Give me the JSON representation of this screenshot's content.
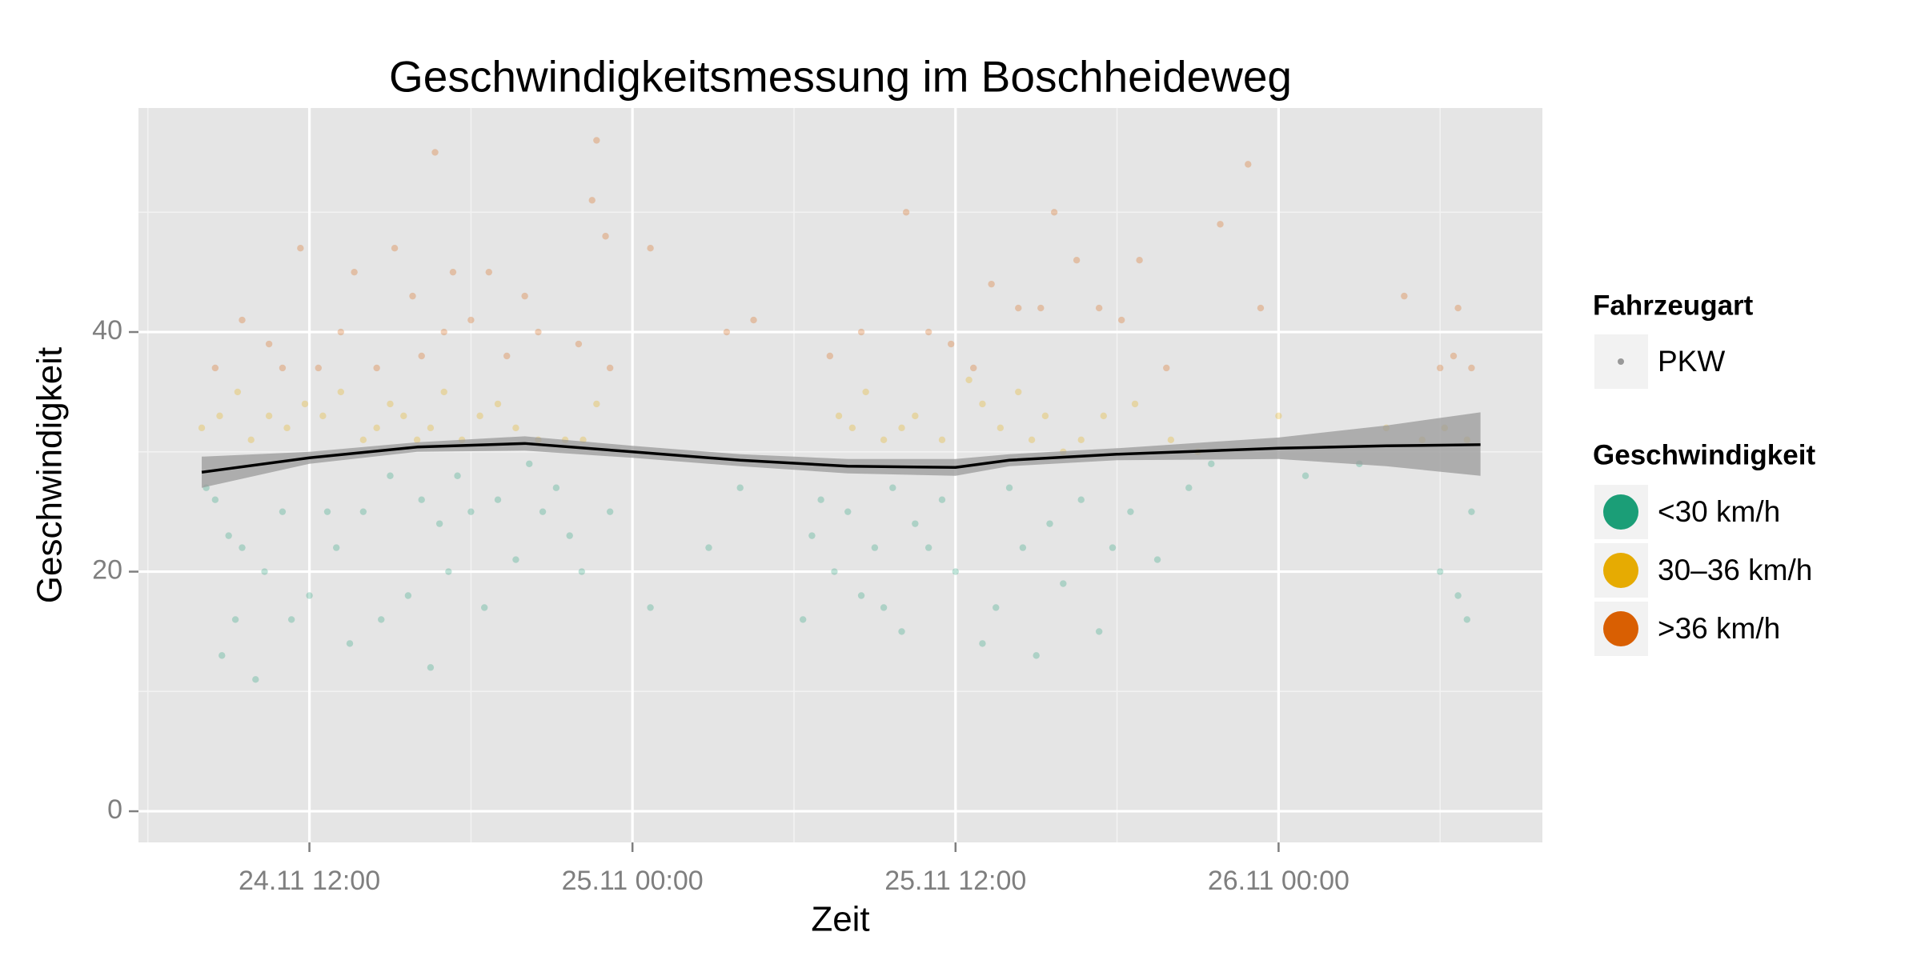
{
  "chart_data": {
    "type": "scatter",
    "title": "Geschwindigkeitsmessung im Boschheideweg",
    "xlabel": "Zeit",
    "ylabel": "Geschwindigkeit",
    "xlim": [
      "24.11 05:39",
      "26.11 09:48"
    ],
    "xticks": [
      "24.11 12:00",
      "25.11 00:00",
      "25.11 12:00",
      "26.11 00:00"
    ],
    "xminor": [
      "24.11 06:00",
      "24.11 18:00",
      "25.11 06:00",
      "25.11 18:00",
      "26.11 06:00"
    ],
    "ylim": [
      -2.6,
      58.7
    ],
    "yticks": [
      0,
      20,
      40
    ],
    "yminor": [
      10,
      30,
      50
    ],
    "grid": true,
    "legend": {
      "shape_title": "Fahrzeugart",
      "shape_entries": [
        "PKW"
      ],
      "color_title": "Geschwindigkeit",
      "position": "right"
    },
    "series": [
      {
        "name": "<30 km/h",
        "color": "#1b9e77",
        "x": [
          "24.11 08:10",
          "24.11 08:30",
          "24.11 08:45",
          "24.11 09:00",
          "24.11 09:15",
          "24.11 09:30",
          "24.11 10:00",
          "24.11 10:20",
          "24.11 11:00",
          "24.11 11:20",
          "24.11 12:00",
          "24.11 12:40",
          "24.11 13:00",
          "24.11 13:30",
          "24.11 14:00",
          "24.11 14:40",
          "24.11 15:00",
          "24.11 15:40",
          "24.11 16:10",
          "24.11 16:30",
          "24.11 16:50",
          "24.11 17:10",
          "24.11 17:30",
          "24.11 18:00",
          "24.11 18:30",
          "24.11 19:00",
          "24.11 19:40",
          "24.11 20:10",
          "24.11 20:40",
          "24.11 21:10",
          "24.11 21:40",
          "24.11 22:07",
          "24.11 23:10",
          "25.11 00:40",
          "25.11 02:50",
          "25.11 04:00",
          "25.11 06:20",
          "25.11 06:40",
          "25.11 07:00",
          "25.11 07:30",
          "25.11 08:00",
          "25.11 08:30",
          "25.11 09:00",
          "25.11 09:20",
          "25.11 09:40",
          "25.11 10:00",
          "25.11 10:30",
          "25.11 11:00",
          "25.11 11:30",
          "25.11 12:00",
          "25.11 13:00",
          "25.11 13:30",
          "25.11 14:00",
          "25.11 14:30",
          "25.11 15:00",
          "25.11 15:30",
          "25.11 16:00",
          "25.11 16:40",
          "25.11 17:20",
          "25.11 17:50",
          "25.11 18:30",
          "25.11 19:30",
          "25.11 20:40",
          "25.11 21:30",
          "26.11 01:00",
          "26.11 03:00",
          "26.11 06:00",
          "26.11 06:40",
          "26.11 07:00",
          "26.11 07:10"
        ],
        "values": [
          27,
          26,
          13,
          23,
          16,
          22,
          11,
          20,
          25,
          16,
          18,
          25,
          22,
          14,
          25,
          16,
          28,
          18,
          26,
          12,
          24,
          20,
          28,
          25,
          17,
          26,
          21,
          29,
          25,
          27,
          23,
          20,
          25,
          17,
          22,
          27,
          16,
          23,
          26,
          20,
          25,
          18,
          22,
          17,
          27,
          15,
          24,
          22,
          26,
          20,
          14,
          17,
          27,
          22,
          13,
          24,
          19,
          26,
          15,
          22,
          25,
          21,
          27,
          29,
          28,
          29,
          20,
          18,
          16,
          25
        ]
      },
      {
        "name": "30–36 km/h",
        "color": "#e6ab02",
        "x": [
          "24.11 08:00",
          "24.11 08:40",
          "24.11 09:20",
          "24.11 09:50",
          "24.11 10:30",
          "24.11 11:10",
          "24.11 11:50",
          "24.11 12:30",
          "24.11 13:10",
          "24.11 14:00",
          "24.11 14:30",
          "24.11 15:00",
          "24.11 15:30",
          "24.11 16:00",
          "24.11 16:30",
          "24.11 17:00",
          "24.11 17:40",
          "24.11 18:20",
          "24.11 19:00",
          "24.11 19:40",
          "24.11 20:30",
          "24.11 21:30",
          "24.11 22:10",
          "24.11 22:40",
          "25.11 07:40",
          "25.11 08:10",
          "25.11 08:40",
          "25.11 09:20",
          "25.11 10:00",
          "25.11 10:30",
          "25.11 11:30",
          "25.11 12:30",
          "25.11 13:00",
          "25.11 13:40",
          "25.11 14:20",
          "25.11 14:50",
          "25.11 15:20",
          "25.11 16:00",
          "25.11 16:40",
          "25.11 17:30",
          "25.11 18:40",
          "25.11 20:00",
          "25.11 21:00",
          "26.11 00:00",
          "26.11 04:00",
          "26.11 05:20",
          "26.11 06:10",
          "26.11 07:00"
        ],
        "values": [
          32,
          33,
          35,
          31,
          33,
          32,
          34,
          33,
          35,
          31,
          32,
          34,
          33,
          31,
          32,
          35,
          31,
          33,
          34,
          32,
          31,
          31,
          31,
          34,
          33,
          32,
          35,
          31,
          32,
          33,
          31,
          36,
          34,
          32,
          35,
          31,
          33,
          30,
          31,
          33,
          34,
          31,
          30,
          33,
          32,
          31,
          32,
          31
        ]
      },
      {
        "name": ">36 km/h",
        "color": "#d95f02",
        "x": [
          "24.11 08:30",
          "24.11 09:30",
          "24.11 10:30",
          "24.11 11:00",
          "24.11 11:40",
          "24.11 12:20",
          "24.11 13:10",
          "24.11 13:40",
          "24.11 14:30",
          "24.11 15:10",
          "24.11 15:50",
          "24.11 16:10",
          "24.11 16:40",
          "24.11 17:00",
          "24.11 17:20",
          "24.11 18:00",
          "24.11 18:40",
          "24.11 19:20",
          "24.11 20:00",
          "24.11 20:30",
          "24.11 22:00",
          "24.11 22:30",
          "24.11 22:40",
          "24.11 23:00",
          "24.11 23:10",
          "25.11 00:40",
          "25.11 03:30",
          "25.11 04:30",
          "25.11 07:20",
          "25.11 08:30",
          "25.11 10:10",
          "25.11 11:00",
          "25.11 11:50",
          "25.11 12:40",
          "25.11 13:20",
          "25.11 14:20",
          "25.11 15:10",
          "25.11 15:40",
          "25.11 16:30",
          "25.11 17:20",
          "25.11 18:10",
          "25.11 18:50",
          "25.11 19:50",
          "25.11 21:50",
          "25.11 22:52",
          "25.11 23:20",
          "26.11 04:40",
          "26.11 06:00",
          "26.11 06:30",
          "26.11 06:40",
          "26.11 07:10"
        ],
        "values": [
          37,
          41,
          39,
          37,
          47,
          37,
          40,
          45,
          37,
          47,
          43,
          38,
          55,
          40,
          45,
          41,
          45,
          38,
          43,
          40,
          39,
          51,
          56,
          48,
          37,
          47,
          40,
          41,
          38,
          40,
          50,
          40,
          39,
          37,
          44,
          42,
          42,
          50,
          46,
          42,
          41,
          46,
          37,
          49,
          54,
          42,
          43,
          37,
          38,
          42,
          37
        ]
      }
    ],
    "smooth": {
      "color": "#000000",
      "x": [
        "24.11 08:00",
        "24.11 12:00",
        "24.11 16:00",
        "24.11 20:00",
        "25.11 00:00",
        "25.11 04:00",
        "25.11 08:00",
        "25.11 12:00",
        "25.11 14:00",
        "25.11 18:00",
        "26.11 00:00",
        "26.11 04:00",
        "26.11 07:30"
      ],
      "values": [
        28.3,
        29.5,
        30.4,
        30.7,
        30.0,
        29.3,
        28.8,
        28.7,
        29.3,
        29.8,
        30.3,
        30.5,
        30.6
      ],
      "lower": [
        27.0,
        29.0,
        30.0,
        30.1,
        29.5,
        28.8,
        28.2,
        28.0,
        28.8,
        29.3,
        29.4,
        28.8,
        28.0
      ],
      "upper": [
        29.6,
        30.0,
        30.8,
        31.3,
        30.5,
        29.8,
        29.4,
        29.4,
        29.8,
        30.3,
        31.2,
        32.2,
        33.3
      ]
    }
  }
}
